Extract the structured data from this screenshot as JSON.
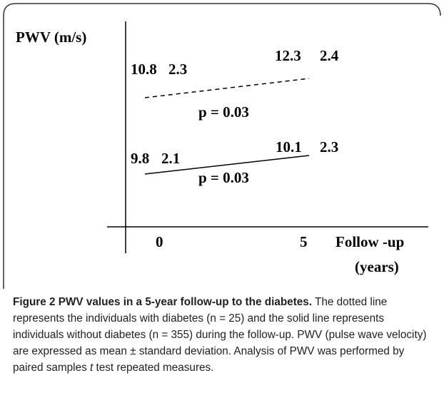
{
  "figure": {
    "y_axis_label": "PWV (m/s)",
    "x_ticks": [
      "0",
      "5"
    ],
    "x_axis_label": [
      "Follow -up",
      "(years)"
    ],
    "diabetes": {
      "start_mean": "10.8",
      "start_sd": "2.3",
      "end_mean": "12.3",
      "end_sd": "2.4",
      "p": "p = 0.03"
    },
    "no_diabetes": {
      "start_mean": "9.8",
      "start_sd": "2.1",
      "end_mean": "10.1",
      "end_sd": "2.3",
      "p": "p = 0.03"
    }
  },
  "caption": {
    "label": "Figure 2",
    "title": "PWV values in a 5-year follow-up to the diabetes.",
    "text_before": "The dotted line represents the individuals with diabetes (n = 25) and the solid line represents individuals without diabetes (n = 355) during the follow-up. PWV (pulse wave velocity) are expressed as mean ± standard deviation. Analysis of PWV was performed by paired samples",
    "italic": "t",
    "text_after": "test repeated measures."
  }
}
